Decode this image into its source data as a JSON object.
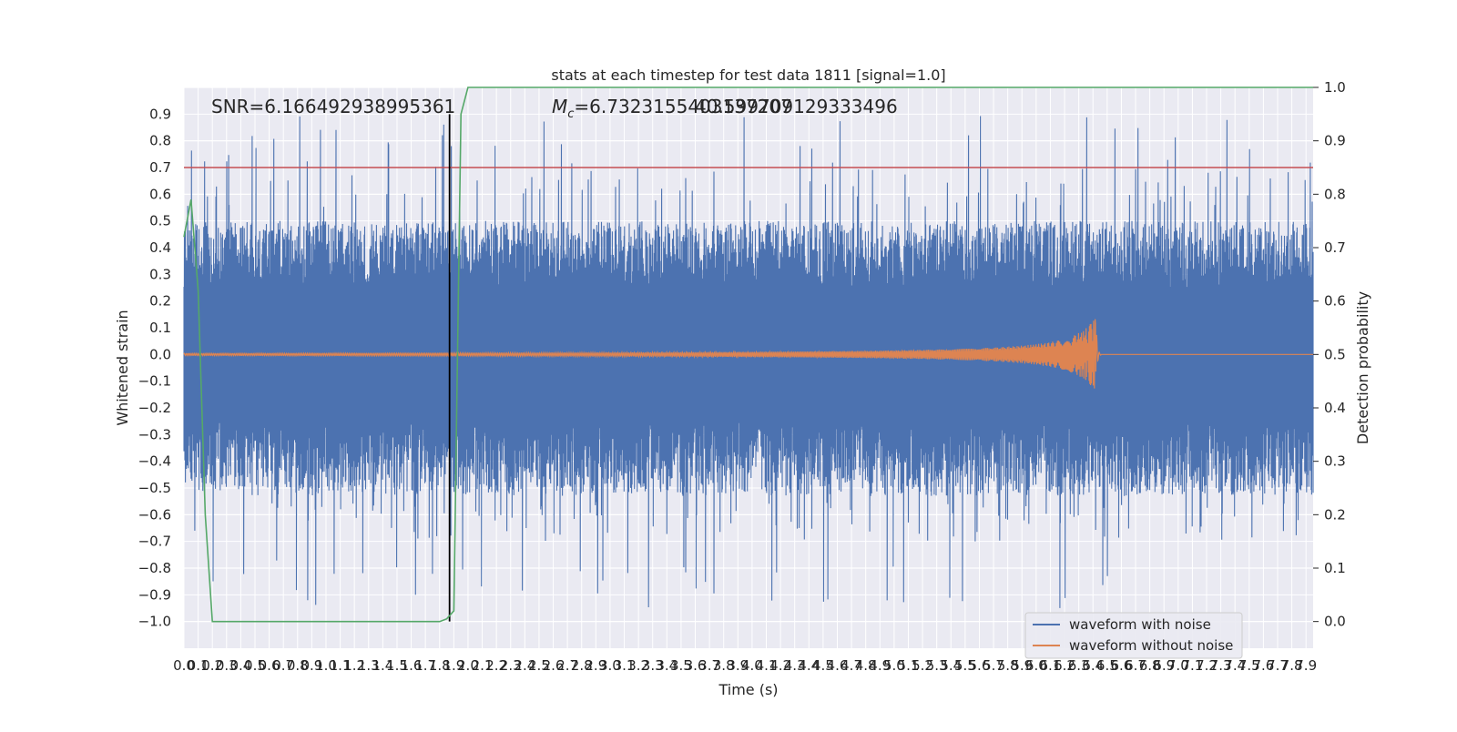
{
  "chart_data": {
    "type": "line",
    "title": "stats at each timestep for test data 1811 [signal=1.0]",
    "xlabel": "Time (s)",
    "ylabel": "Whitened strain",
    "y2label": "Detection probability",
    "xlim": [
      0.0,
      7.95
    ],
    "ylim": [
      -1.1,
      1.0
    ],
    "y2lim": [
      -0.05,
      1.0
    ],
    "x_ticks": [
      0.0,
      0.1,
      0.2,
      0.3,
      0.4,
      0.5,
      0.6,
      0.7,
      0.8,
      0.9,
      1.0,
      1.1,
      1.2,
      1.3,
      1.4,
      1.5,
      1.6,
      1.7,
      1.8,
      1.9,
      2.0,
      2.1,
      2.2,
      2.3,
      2.4,
      2.5,
      2.6,
      2.7,
      2.8,
      2.9,
      3.0,
      3.1,
      3.2,
      3.3,
      3.4,
      3.5,
      3.6,
      3.7,
      3.8,
      3.9,
      4.0,
      4.1,
      4.2,
      4.3,
      4.4,
      4.5,
      4.6,
      4.7,
      4.8,
      4.9,
      5.0,
      5.1,
      5.2,
      5.3,
      5.4,
      5.5,
      5.6,
      5.7,
      5.8,
      5.9,
      6.0,
      6.1,
      6.2,
      6.3,
      6.4,
      6.5,
      6.6,
      6.7,
      6.8,
      6.9,
      7.0,
      7.1,
      7.2,
      7.3,
      7.4,
      7.5,
      7.6,
      7.7,
      7.8,
      7.9
    ],
    "y_ticks": [
      0.9,
      0.8,
      0.7,
      0.6,
      0.5,
      0.4,
      0.3,
      0.2,
      0.1,
      0.0,
      -0.1,
      -0.2,
      -0.3,
      -0.4,
      -0.5,
      -0.6,
      -0.7,
      -0.8,
      -0.9,
      -1.0
    ],
    "y_tick_labels": [
      "0.9",
      "0.8",
      "0.7",
      "0.6",
      "0.5",
      "0.4",
      "0.3",
      "0.2",
      "0.1",
      "0.0",
      "−0.1",
      "−0.2",
      "−0.3",
      "−0.4",
      "−0.5",
      "−0.6",
      "−0.7",
      "−0.8",
      "−0.9",
      "−1.0"
    ],
    "y2_ticks": [
      1.0,
      0.9,
      0.8,
      0.7,
      0.6,
      0.5,
      0.4,
      0.3,
      0.2,
      0.1,
      0.0
    ],
    "series": [
      {
        "name": "waveform with noise",
        "color": "#4c72b0",
        "kind": "noisy strain, amplitude roughly ±0.5 with spikes to about ±0.9"
      },
      {
        "name": "waveform without noise",
        "color": "#dd8452",
        "kind": "chirp growing from about ±0.01 at 0 s to a peak of about 0.15 at 6.4 s, then ringdown to 0"
      },
      {
        "name": "",
        "color": "#55a868",
        "axis": "right",
        "x": [
          0.0,
          0.05,
          0.1,
          0.15,
          0.2,
          1.8,
          1.85,
          1.9,
          1.95,
          2.0,
          7.95
        ],
        "y": [
          0.72,
          0.79,
          0.62,
          0.2,
          0.0,
          0.0,
          0.005,
          0.02,
          0.95,
          1.0,
          1.0
        ]
      }
    ],
    "hlines": [
      {
        "axis": "left",
        "y": 0.7,
        "color": "#c44e52"
      }
    ],
    "vlines": [
      {
        "x": 1.87,
        "color": "#000000"
      }
    ],
    "waveform_peak_time": 6.42,
    "annotations": [
      {
        "text": "SNR=6.166492938995361"
      },
      {
        "text": "M_c=6.7323155403137207",
        "overlay": "40.599709129333496"
      }
    ],
    "legend": {
      "location": "lower right",
      "entries": [
        "waveform with noise",
        "waveform without noise"
      ]
    },
    "grid": true,
    "colors": {
      "axes_bg": "#eaeaf2",
      "grid": "#ffffff",
      "text": "#262626"
    }
  }
}
